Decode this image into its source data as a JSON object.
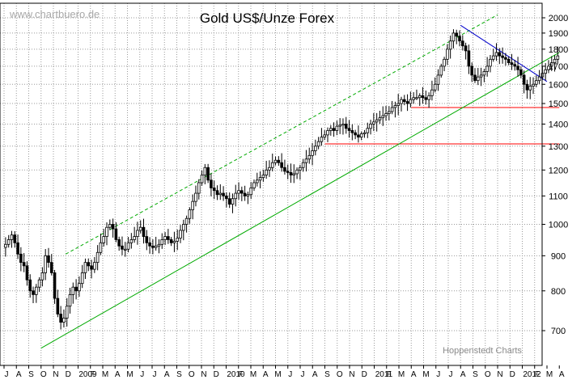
{
  "chart_data": {
    "type": "candlestick",
    "title": "Gold US$/Unze Forex",
    "watermark": "www.chartbuero.de",
    "credit": "Hoppenstedt Charts",
    "y_scale": "log",
    "ylim": [
      620,
      2100
    ],
    "y_ticks": [
      700,
      800,
      900,
      1000,
      1100,
      1200,
      1300,
      1400,
      1500,
      1600,
      1700,
      1800,
      1900,
      2000
    ],
    "y_tick_labels": [
      "700",
      "800",
      "900",
      "1000",
      "1100",
      "1200",
      "1300",
      "1400",
      "1500",
      "1600",
      "1700",
      "1800",
      "1900",
      "2000"
    ],
    "grid": true,
    "x_months": [
      "J",
      "A",
      "S",
      "O",
      "N",
      "D",
      "2009",
      "F",
      "M",
      "A",
      "M",
      "J",
      "J",
      "A",
      "S",
      "O",
      "N",
      "D",
      "2010",
      "F",
      "M",
      "A",
      "M",
      "J",
      "J",
      "A",
      "S",
      "O",
      "N",
      "D",
      "2011",
      "F",
      "M",
      "A",
      "M",
      "J",
      "J",
      "A",
      "S",
      "O",
      "N",
      "D",
      "2012",
      "F",
      "M",
      "A"
    ],
    "x_dates": [
      "2008-07",
      "2008-08",
      "2008-09",
      "2008-10",
      "2008-11",
      "2008-12",
      "2009-01",
      "2009-02",
      "2009-03",
      "2009-04",
      "2009-05",
      "2009-06",
      "2009-07",
      "2009-08",
      "2009-09",
      "2009-10",
      "2009-11",
      "2009-12",
      "2010-01",
      "2010-02",
      "2010-03",
      "2010-04",
      "2010-05",
      "2010-06",
      "2010-07",
      "2010-08",
      "2010-09",
      "2010-10",
      "2010-11",
      "2010-12",
      "2011-01",
      "2011-02",
      "2011-03",
      "2011-04",
      "2011-05",
      "2011-06",
      "2011-07",
      "2011-08",
      "2011-09",
      "2011-10",
      "2011-11",
      "2011-12",
      "2012-01",
      "2012-02",
      "2012-03",
      "2012-04"
    ],
    "weekly_closes": [
      935,
      950,
      965,
      940,
      905,
      880,
      870,
      830,
      800,
      790,
      810,
      830,
      850,
      900,
      880,
      850,
      780,
      740,
      720,
      730,
      760,
      790,
      810,
      800,
      820,
      850,
      880,
      870,
      860,
      880,
      910,
      940,
      960,
      990,
      1000,
      985,
      950,
      930,
      920,
      920,
      940,
      950,
      960,
      980,
      990,
      960,
      940,
      930,
      925,
      930,
      935,
      950,
      960,
      950,
      940,
      945,
      955,
      980,
      1000,
      1020,
      1050,
      1080,
      1110,
      1150,
      1180,
      1210,
      1160,
      1130,
      1120,
      1105,
      1110,
      1100,
      1090,
      1070,
      1090,
      1110,
      1120,
      1110,
      1100,
      1105,
      1130,
      1150,
      1160,
      1170,
      1180,
      1200,
      1210,
      1230,
      1240,
      1230,
      1210,
      1195,
      1190,
      1180,
      1185,
      1200,
      1210,
      1230,
      1245,
      1260,
      1280,
      1300,
      1320,
      1340,
      1350,
      1370,
      1380,
      1370,
      1390,
      1395,
      1400,
      1380,
      1370,
      1360,
      1350,
      1340,
      1355,
      1360,
      1380,
      1400,
      1410,
      1420,
      1430,
      1440,
      1450,
      1460,
      1480,
      1490,
      1500,
      1520,
      1510,
      1500,
      1520,
      1530,
      1530,
      1540,
      1530,
      1520,
      1540,
      1570,
      1600,
      1650,
      1700,
      1740,
      1800,
      1850,
      1900,
      1880,
      1850,
      1820,
      1790,
      1700,
      1650,
      1620,
      1640,
      1650,
      1670,
      1700,
      1740,
      1760,
      1780,
      1760,
      1750,
      1740,
      1720,
      1710,
      1700,
      1680,
      1650,
      1600,
      1570,
      1590,
      1600,
      1620,
      1640,
      1660,
      1680,
      1700,
      1720,
      1740,
      1760
    ],
    "annotations": {
      "support_lines": [
        {
          "from": "2010-09",
          "to": "2012-04",
          "value": 1310,
          "color": "#ff0000"
        },
        {
          "from": "2011-04",
          "to": "2012-04",
          "value": 1480,
          "color": "#ff0000"
        }
      ],
      "uptrend_channel": {
        "lower": [
          {
            "x": "2008-10",
            "y": 660
          },
          {
            "x": "2012-04",
            "y": 1780
          }
        ],
        "upper": [
          {
            "x": "2008-12",
            "y": 905
          },
          {
            "x": "2011-11",
            "y": 2020
          }
        ],
        "color": "#00aa00"
      },
      "downtrend_line": {
        "points": [
          {
            "x": "2011-08",
            "y": 1950
          },
          {
            "x": "2012-03",
            "y": 1615
          }
        ],
        "color": "#0000cc"
      }
    }
  }
}
